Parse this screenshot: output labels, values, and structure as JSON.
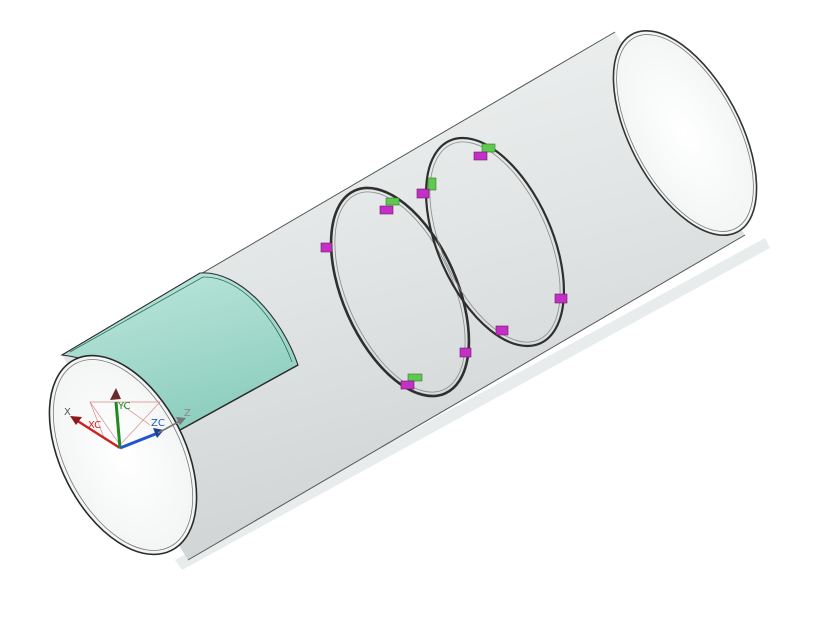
{
  "viewport": {
    "background": "#ffffff",
    "model": "cylindrical-pipe-with-two-rings"
  },
  "triad": {
    "x_label": "X",
    "xc_label": "XC",
    "yc_label": "YC",
    "zc_label": "ZC",
    "z_label": "Z",
    "colors": {
      "x": "#cc2222",
      "y": "#1f8a1f",
      "z": "#2255cc",
      "neutral": "#555555"
    }
  },
  "colors": {
    "pipe_fill": "#e3e6e6",
    "pipe_edge": "#333333",
    "panel_fill": "#a9ddd0",
    "ring_edge": "#3a3a3a",
    "marker_magenta": "#c42fc4",
    "marker_green": "#5fc850"
  }
}
